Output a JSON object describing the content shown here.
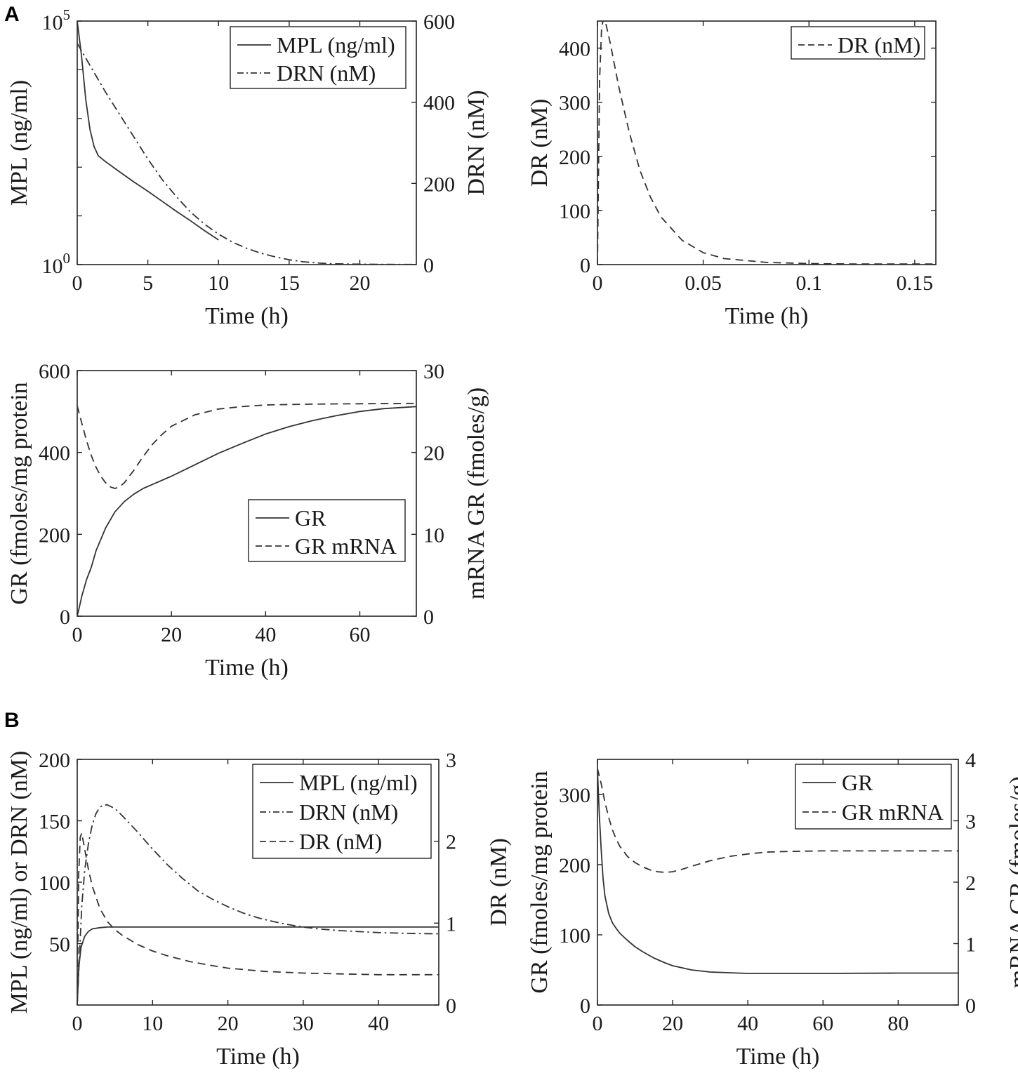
{
  "figure": {
    "panel_labels": [
      "A",
      "B"
    ]
  },
  "chart_data": [
    {
      "type": "line",
      "id": "A1",
      "xlabel": "Time (h)",
      "ylabel": "MPL (ng/ml)",
      "y2label": "DRN (nM)",
      "xlim": [
        0,
        24
      ],
      "xticks": [
        "0",
        "5",
        "10",
        "15",
        "20"
      ],
      "yscale": "log",
      "ylim": [
        1,
        100000
      ],
      "yticks": [
        {
          "base": "10",
          "exp": "0"
        },
        {
          "base": "10",
          "exp": "5"
        }
      ],
      "y2lim": [
        0,
        600
      ],
      "y2ticks": [
        "0",
        "200",
        "400",
        "600"
      ],
      "legend": {
        "position": "top-right",
        "entries": [
          "MPL (ng/ml)",
          "DRN (nM)"
        ]
      },
      "series": [
        {
          "name": "MPL (ng/ml)",
          "axis": "left",
          "style": "solid",
          "x": [
            0,
            0.3,
            0.6,
            0.9,
            1.2,
            1.5,
            2,
            3,
            4,
            5,
            6,
            7,
            8,
            9,
            10
          ],
          "y": [
            100000,
            20000,
            2500,
            600,
            260,
            170,
            130,
            80,
            50,
            32,
            20,
            12.5,
            8,
            5,
            3.2
          ]
        },
        {
          "name": "DRN (nM)",
          "axis": "right",
          "style": "dashdot",
          "x": [
            0,
            0.5,
            1,
            2,
            3,
            4,
            5,
            6,
            7,
            8,
            9,
            10,
            11,
            12,
            13,
            14,
            15,
            16,
            17,
            18,
            20,
            22,
            24
          ],
          "y": [
            545,
            515,
            485,
            425,
            370,
            315,
            260,
            210,
            168,
            130,
            100,
            75,
            55,
            40,
            28,
            19,
            12,
            7,
            4,
            2,
            1,
            0.5,
            0.3
          ]
        }
      ]
    },
    {
      "type": "line",
      "id": "A2",
      "xlabel": "Time (h)",
      "ylabel": "DR (nM)",
      "xlim": [
        0,
        0.16
      ],
      "xticks": [
        "0",
        "0.05",
        "0.1",
        "0.15"
      ],
      "ylim": [
        0,
        450
      ],
      "yticks": [
        "0",
        "100",
        "200",
        "300",
        "400"
      ],
      "legend": {
        "position": "top-right",
        "entries": [
          "DR (nM)"
        ]
      },
      "series": [
        {
          "name": "DR (nM)",
          "axis": "left",
          "style": "dashed",
          "x": [
            0,
            0.001,
            0.002,
            0.003,
            0.004,
            0.006,
            0.008,
            0.01,
            0.015,
            0.02,
            0.025,
            0.03,
            0.04,
            0.05,
            0.06,
            0.08,
            0.1,
            0.12,
            0.14,
            0.16
          ],
          "y": [
            0,
            340,
            440,
            455,
            445,
            410,
            370,
            330,
            245,
            175,
            125,
            88,
            45,
            22,
            11,
            4,
            2,
            1,
            1,
            1
          ]
        }
      ]
    },
    {
      "type": "line",
      "id": "A3",
      "xlabel": "Time (h)",
      "ylabel": "GR (fmoles/mg protein",
      "y2label": "mRNA GR (fmoles/g)",
      "xlim": [
        0,
        72
      ],
      "xticks": [
        "0",
        "20",
        "40",
        "60"
      ],
      "ylim": [
        0,
        600
      ],
      "yticks": [
        "0",
        "200",
        "400",
        "600"
      ],
      "y2lim": [
        0,
        30
      ],
      "y2ticks": [
        "0",
        "10",
        "20",
        "30"
      ],
      "legend": {
        "position": "middle-right",
        "entries": [
          "GR",
          "GR mRNA"
        ]
      },
      "series": [
        {
          "name": "GR",
          "axis": "left",
          "style": "solid",
          "x": [
            0,
            0.5,
            1,
            2,
            3,
            4,
            6,
            8,
            10,
            12,
            14,
            16,
            20,
            25,
            30,
            35,
            40,
            45,
            50,
            55,
            60,
            65,
            72
          ],
          "y": [
            0,
            25,
            50,
            90,
            120,
            160,
            215,
            255,
            280,
            298,
            312,
            322,
            342,
            370,
            398,
            422,
            445,
            463,
            478,
            490,
            500,
            507,
            512
          ]
        },
        {
          "name": "GR mRNA",
          "axis": "right",
          "style": "dashed",
          "x": [
            0,
            1,
            2,
            3,
            4,
            5,
            6,
            7,
            8,
            9,
            10,
            12,
            14,
            16,
            18,
            20,
            25,
            30,
            35,
            40,
            50,
            60,
            72
          ],
          "y": [
            25.7,
            23.5,
            21.4,
            19.6,
            18.2,
            17.1,
            16.3,
            15.8,
            15.6,
            15.8,
            16.3,
            17.8,
            19.5,
            21.0,
            22.2,
            23.2,
            24.6,
            25.3,
            25.6,
            25.8,
            25.9,
            25.95,
            26
          ]
        }
      ]
    },
    {
      "type": "line",
      "id": "B1",
      "xlabel": "Time (h)",
      "ylabel": "MPL (ng/ml) or DRN (nM)",
      "y2label": "DR (nM)",
      "xlim": [
        0,
        48
      ],
      "xticks": [
        "0",
        "10",
        "20",
        "30",
        "40"
      ],
      "ylim": [
        0,
        200
      ],
      "yticks": [
        "50",
        "100",
        "150",
        "200"
      ],
      "y2lim": [
        0,
        3
      ],
      "y2ticks": [
        "0",
        "1",
        "2",
        "3"
      ],
      "legend": {
        "position": "top-right",
        "entries": [
          "MPL (ng/ml)",
          "DRN (nM)",
          "DR (nM)"
        ]
      },
      "series": [
        {
          "name": "MPL (ng/ml)",
          "axis": "left",
          "style": "solid",
          "x": [
            0,
            0.2,
            0.5,
            1,
            1.5,
            2,
            3,
            4,
            6,
            10,
            20,
            30,
            48
          ],
          "y": [
            0,
            30,
            47,
            56,
            60,
            62,
            63,
            63.5,
            63.5,
            63.5,
            63.5,
            63.5,
            63.5
          ]
        },
        {
          "name": "DRN (nM)",
          "axis": "left",
          "style": "dashdot",
          "x": [
            0,
            0.3,
            0.6,
            1,
            1.5,
            2,
            2.5,
            3,
            3.5,
            4,
            5,
            6,
            8,
            10,
            12,
            14,
            16,
            18,
            20,
            22,
            24,
            26,
            28,
            30,
            32,
            35,
            40,
            45,
            48
          ],
          "y": [
            0,
            40,
            80,
            110,
            132,
            147,
            156,
            161,
            163,
            163,
            160,
            154,
            141,
            127,
            114,
            103,
            93,
            86,
            80,
            75,
            71,
            68,
            65.5,
            63.5,
            62,
            60.5,
            59,
            58.2,
            58
          ]
        },
        {
          "name": "DR (nM)",
          "axis": "right",
          "style": "dashed",
          "x": [
            0,
            0.2,
            0.4,
            0.6,
            0.8,
            1,
            1.5,
            2,
            3,
            4,
            5,
            6,
            8,
            10,
            12,
            15,
            18,
            20,
            25,
            30,
            35,
            40,
            45,
            48
          ],
          "y": [
            0,
            1.6,
            2.05,
            2.1,
            2.0,
            1.9,
            1.65,
            1.45,
            1.18,
            1.02,
            0.92,
            0.85,
            0.74,
            0.66,
            0.6,
            0.53,
            0.48,
            0.45,
            0.41,
            0.39,
            0.38,
            0.37,
            0.37,
            0.37
          ]
        }
      ]
    },
    {
      "type": "line",
      "id": "B2",
      "xlabel": "Time (h)",
      "ylabel": "GR (fmoles/mg protein",
      "y2label": "mRNA GR (fmoles/g)",
      "xlim": [
        0,
        96
      ],
      "xticks": [
        "0",
        "20",
        "40",
        "60",
        "80"
      ],
      "ylim": [
        0,
        350
      ],
      "yticks": [
        "0",
        "100",
        "200",
        "300"
      ],
      "y2lim": [
        0,
        4
      ],
      "y2ticks": [
        "0",
        "1",
        "2",
        "3",
        "4"
      ],
      "legend": {
        "position": "top-right",
        "entries": [
          "GR",
          "GR mRNA"
        ]
      },
      "series": [
        {
          "name": "GR",
          "axis": "left",
          "style": "solid",
          "x": [
            0,
            0.5,
            1,
            1.5,
            2,
            3,
            4,
            5,
            6,
            8,
            10,
            12,
            15,
            18,
            20,
            25,
            30,
            35,
            40,
            50,
            60,
            80,
            96
          ],
          "y": [
            335,
            270,
            220,
            180,
            155,
            130,
            117,
            109,
            102,
            92,
            83,
            76,
            67,
            60,
            56,
            50,
            47,
            46,
            45,
            45,
            45,
            45.5,
            45.5
          ]
        },
        {
          "name": "GR mRNA",
          "axis": "right",
          "style": "dashed",
          "x": [
            0,
            1,
            2,
            3,
            4,
            5,
            6,
            8,
            10,
            12,
            14,
            16,
            18,
            20,
            22,
            25,
            30,
            35,
            40,
            45,
            50,
            60,
            70,
            80,
            96
          ],
          "y": [
            3.85,
            3.6,
            3.3,
            3.05,
            2.85,
            2.7,
            2.58,
            2.42,
            2.32,
            2.25,
            2.2,
            2.17,
            2.16,
            2.17,
            2.2,
            2.26,
            2.35,
            2.42,
            2.46,
            2.49,
            2.5,
            2.51,
            2.51,
            2.51,
            2.51
          ]
        }
      ]
    }
  ]
}
